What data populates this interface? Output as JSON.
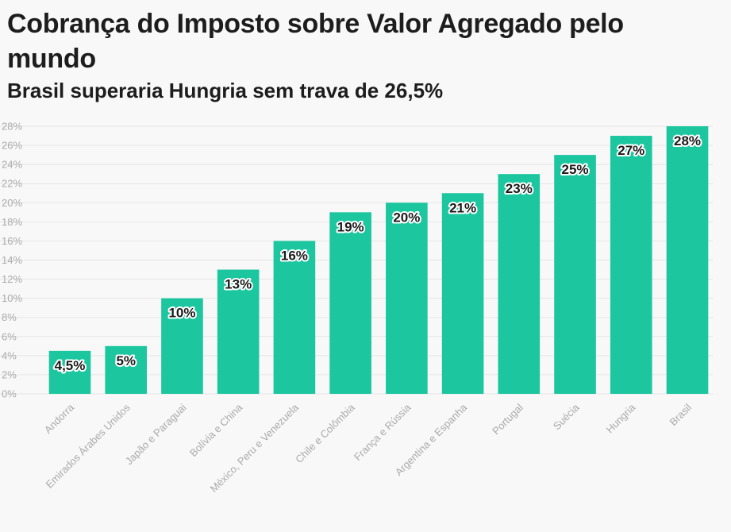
{
  "header": {
    "title": "Cobrança do Imposto sobre Valor Agregado pelo mundo",
    "subtitle": "Brasil superaria Hungria sem trava de 26,5%"
  },
  "colors": {
    "bar": "#1cc7a0",
    "grid": "#e6e6e6",
    "axis_text": "#aaaaaa"
  },
  "chart_data": {
    "type": "bar",
    "title": "Cobrança do Imposto sobre Valor Agregado pelo mundo",
    "subtitle": "Brasil superaria Hungria sem trava de 26,5%",
    "xlabel": "",
    "ylabel": "",
    "ylim": [
      0,
      28
    ],
    "yticks": [
      0,
      2,
      4,
      6,
      8,
      10,
      12,
      14,
      16,
      18,
      20,
      22,
      24,
      26,
      28
    ],
    "ytick_labels": [
      "0%",
      "2%",
      "4%",
      "6%",
      "8%",
      "10%",
      "12%",
      "14%",
      "16%",
      "18%",
      "20%",
      "22%",
      "24%",
      "26%",
      "28%"
    ],
    "grid": true,
    "categories": [
      "Andorra",
      "Emirados Árabes Unidos",
      "Japão e Paraguai",
      "Bolívia e China",
      "México, Peru e Venezuela",
      "Chile e Colômbia",
      "França e Rússia",
      "Argentina e Espanha",
      "Portugal",
      "Suécia",
      "Hungria",
      "Brasil"
    ],
    "values": [
      4.5,
      5,
      10,
      13,
      16,
      19,
      20,
      21,
      23,
      25,
      27,
      28
    ],
    "data_labels": [
      "4,5%",
      "5%",
      "10%",
      "13%",
      "16%",
      "19%",
      "20%",
      "21%",
      "23%",
      "25%",
      "27%",
      "28%"
    ]
  }
}
